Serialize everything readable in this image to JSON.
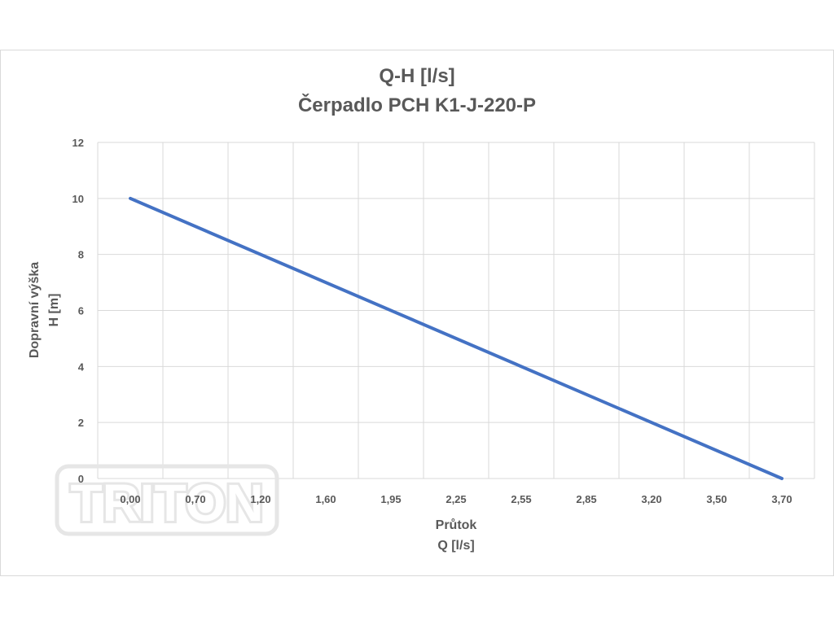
{
  "chart_data": {
    "type": "line",
    "title": "Q-H  [l/s]",
    "subtitle": "Čerpadlo PCH K1-J-220-P",
    "xlabel": [
      "Průtok",
      "Q [l/s]"
    ],
    "ylabel": [
      "Dopravní výška",
      "H [m]"
    ],
    "categories": [
      "0,00",
      "0,70",
      "1,20",
      "1,60",
      "1,95",
      "2,25",
      "2,55",
      "2,85",
      "3,20",
      "3,50",
      "3,70"
    ],
    "series": [
      {
        "color": "#4472c4",
        "points": [
          {
            "x": "0,00",
            "y": 10
          },
          {
            "x": "3,70",
            "y": 0
          }
        ]
      }
    ],
    "ylim": [
      0,
      12
    ],
    "yticks": [
      0,
      2,
      4,
      6,
      8,
      10,
      12
    ],
    "grid": true,
    "legend": "none"
  },
  "watermark": {
    "text": "TRITON"
  },
  "colors": {
    "line": "#4472c4",
    "grid": "#d9d9d9",
    "text": "#595959"
  }
}
